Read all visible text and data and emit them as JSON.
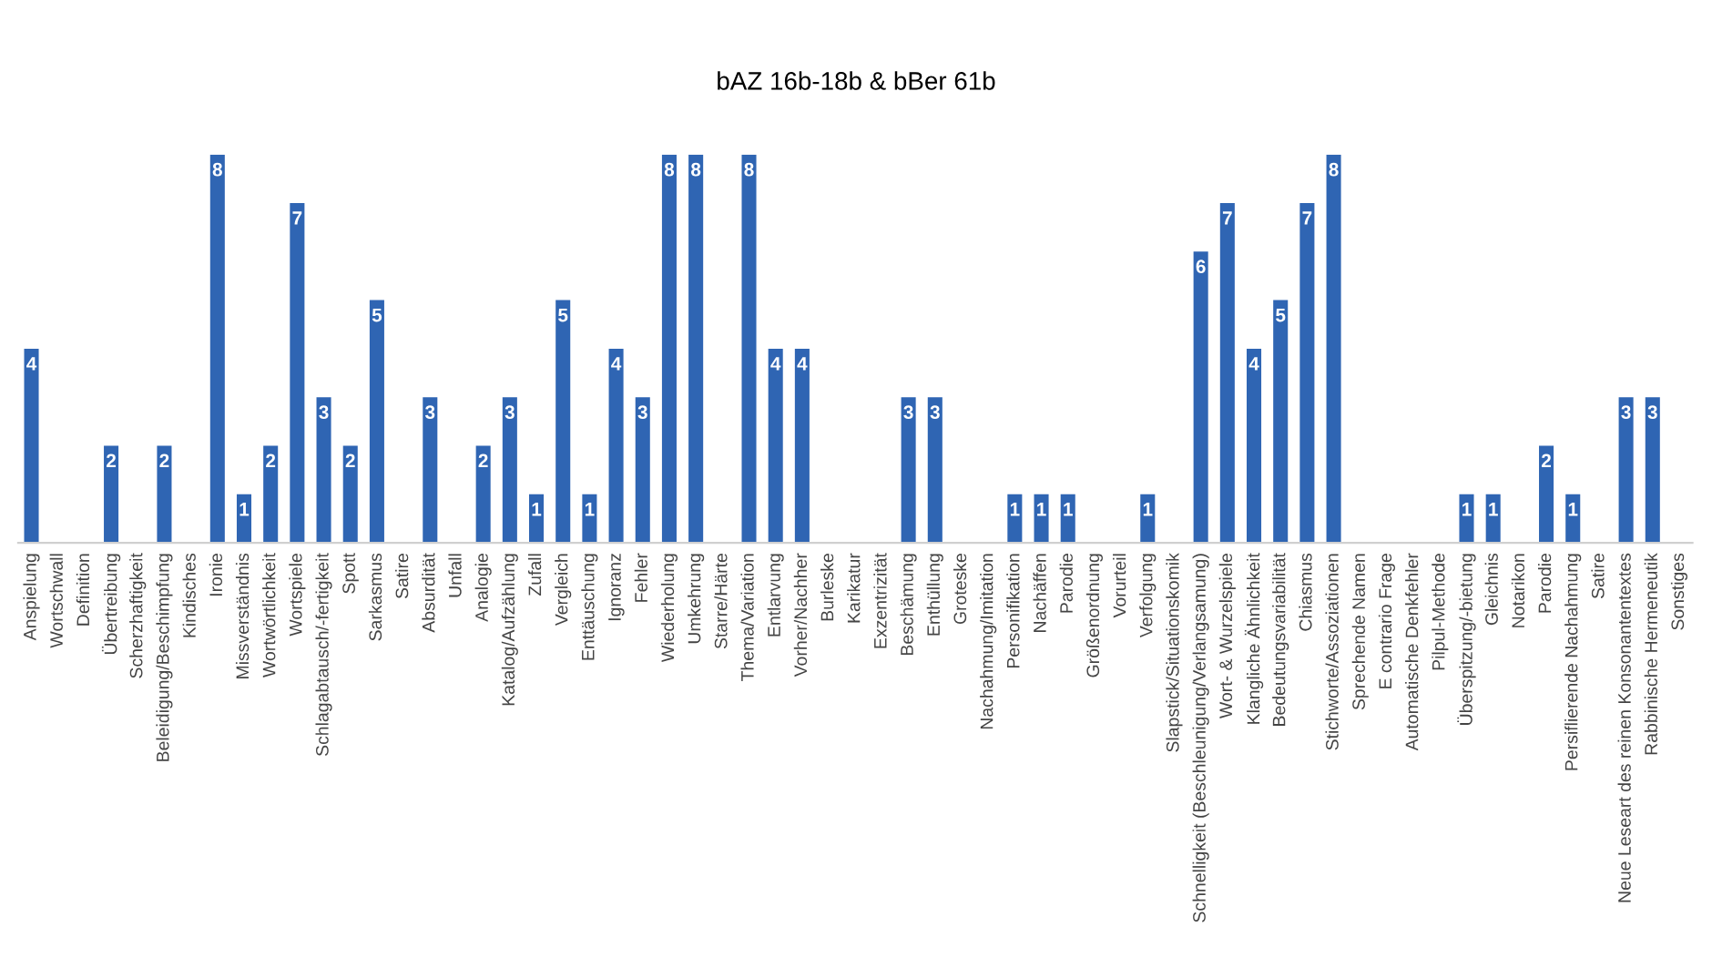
{
  "chart_data": {
    "type": "bar",
    "title": "bAZ 16b-18b & bBer 61b",
    "categories": [
      "Anspielung",
      "Wortschwall",
      "Definition",
      "Übertreibung",
      "Scherzhaftigkeit",
      "Beleidigung/Beschimpfung",
      "Kindisches",
      "Ironie",
      "Missverständnis",
      "Wortwörtlichkeit",
      "Wortspiele",
      "Schlagabtausch/-fertigkeit",
      "Spott",
      "Sarkasmus",
      "Satire",
      "Absurdität",
      "Unfall",
      "Analogie",
      "Katalog/Aufzählung",
      "Zufall",
      "Vergleich",
      "Enttäuschung",
      "Ignoranz",
      "Fehler",
      "Wiederholung",
      "Umkehrung",
      "Starre/Härte",
      "Thema/Variation",
      "Entlarvung",
      "Vorher/Nachher",
      "Burleske",
      "Karikatur",
      "Exzentrizität",
      "Beschämung",
      "Enthüllung",
      "Groteske",
      "Nachahmung/Imitation",
      "Personifikation",
      "Nachäffen",
      "Parodie",
      "Größenordnung",
      "Vorurteil",
      "Verfolgung",
      "Slapstick/Situationskomik",
      "Schnelligkeit (Beschleunigung/Verlangsamung)",
      "Wort- & Wurzelspiele",
      "Klangliche Ähnlichkeit",
      "Bedeutungsvariabilität",
      "Chiasmus",
      "Stichworte/Assoziationen",
      "Sprechende Namen",
      "E contrario Frage",
      "Automatische Denkfehler",
      "Pilpul-Methode",
      "Überspitzung/-bietung",
      "Gleichnis",
      "Notarikon",
      "Parodie",
      "Persiflierende Nachahmung",
      "Satire",
      "Neue Leseart des reinen Konsonantentextes",
      "Rabbinische Hermeneutik",
      "Sonstiges"
    ],
    "values": [
      4,
      0,
      0,
      2,
      0,
      2,
      0,
      8,
      1,
      2,
      7,
      3,
      2,
      5,
      0,
      3,
      0,
      2,
      3,
      1,
      5,
      1,
      4,
      3,
      8,
      8,
      0,
      8,
      4,
      4,
      0,
      0,
      0,
      3,
      3,
      0,
      0,
      1,
      1,
      1,
      0,
      0,
      1,
      0,
      6,
      7,
      4,
      5,
      7,
      8,
      0,
      0,
      0,
      0,
      1,
      1,
      0,
      2,
      1,
      0,
      3,
      3,
      0
    ],
    "value_labels": [
      "4",
      null,
      null,
      "2",
      null,
      "2",
      null,
      "8",
      "1",
      "2",
      "7",
      "3",
      "2",
      "5",
      null,
      "3",
      null,
      "2",
      "3",
      "1",
      "5",
      "1",
      "4",
      "3",
      "8",
      "8",
      null,
      "8",
      "4",
      "4",
      null,
      null,
      null,
      "3",
      "3",
      null,
      null,
      "1",
      "1",
      "1",
      null,
      null,
      "1",
      null,
      "6",
      "7",
      "4",
      "5",
      "7",
      "8",
      null,
      null,
      null,
      null,
      "1",
      "1",
      null,
      "2",
      "1",
      null,
      "3",
      "3",
      null
    ],
    "color": "#2f65b3",
    "tick_labels": "x",
    "grid": false,
    "legend": false
  }
}
